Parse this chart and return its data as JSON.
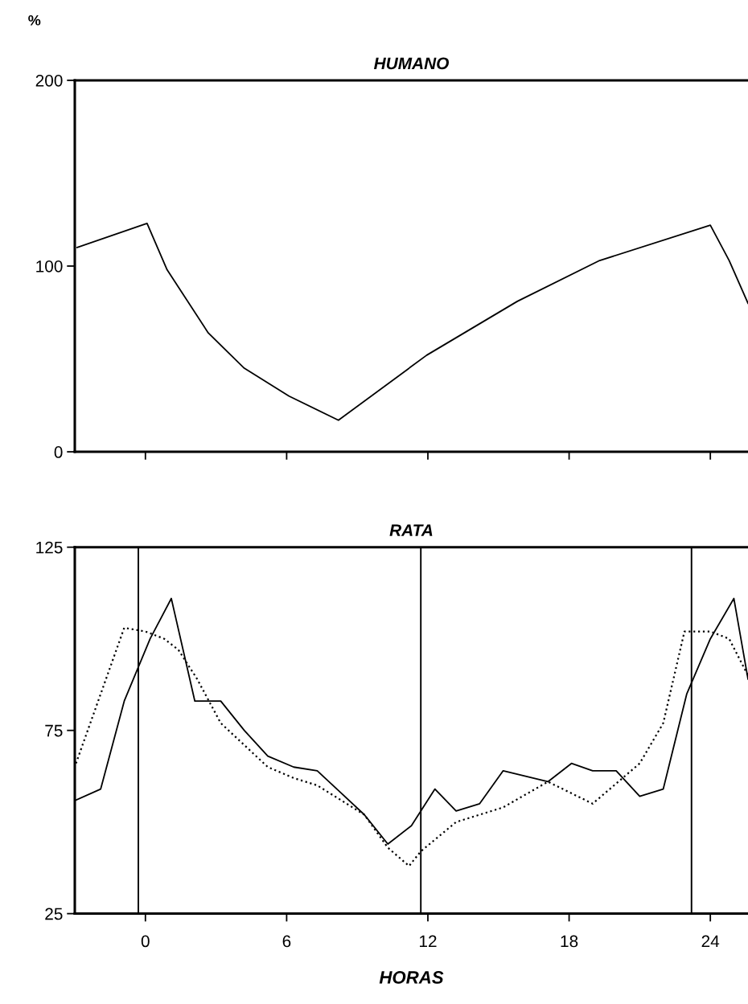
{
  "chart_data": [
    {
      "type": "line",
      "title": "HUMANO",
      "ylabel": "%",
      "xlim": [
        -3,
        25.6
      ],
      "ylim": [
        0,
        200
      ],
      "yticks": [
        0,
        100,
        200
      ],
      "xticks": [
        {
          "value": 0,
          "label": null
        },
        {
          "value": 6,
          "label": null
        },
        {
          "value": 12,
          "label": null
        },
        {
          "value": 18,
          "label": null
        },
        {
          "value": 24,
          "label": null
        }
      ],
      "tick_labels": "y",
      "grid": false,
      "legend": false,
      "series": [
        {
          "color": "#000000",
          "line_style": "solid",
          "x": [
            -2.9,
            0.07,
            0.92,
            2.67,
            4.2,
            6.1,
            8.2,
            11.95,
            15.8,
            19.3,
            24.0,
            24.8,
            25.6
          ],
          "values": [
            110,
            123,
            98,
            64,
            45,
            30,
            17,
            52,
            81,
            103,
            122,
            103,
            80
          ]
        }
      ]
    },
    {
      "type": "line",
      "title": "RATA",
      "xlabel": "HORAS",
      "xlim": [
        -3,
        25.6
      ],
      "ylim": [
        25,
        125
      ],
      "yticks": [
        25,
        75,
        125
      ],
      "xticks": [
        0,
        6,
        12,
        18,
        24
      ],
      "grid": false,
      "legend": false,
      "ref_lines": [
        {
          "axis": "x",
          "value": -0.3,
          "color": "#000000"
        },
        {
          "axis": "x",
          "value": 11.7,
          "color": "#000000"
        },
        {
          "axis": "x",
          "value": 23.2,
          "color": "#000000"
        }
      ],
      "series": [
        {
          "color": "#000000",
          "line_style": "solid",
          "x": [
            -2.95,
            -1.9,
            -0.9,
            0.2,
            1.1,
            2.1,
            3.2,
            4.2,
            5.2,
            6.3,
            7.3,
            8.3,
            9.3,
            10.3,
            11.3,
            12.3,
            13.2,
            14.2,
            15.2,
            17.1,
            18.1,
            19.0,
            20.0,
            21.0,
            22.0,
            23.0,
            24.0,
            25.0,
            25.6
          ],
          "values": [
            56,
            59,
            83,
            100,
            111,
            83,
            83,
            75,
            68,
            65,
            64,
            58,
            52,
            44,
            49,
            59,
            53,
            55,
            64,
            61,
            66,
            64,
            64,
            57,
            59,
            85,
            100,
            111,
            89
          ]
        },
        {
          "color": "#000000",
          "line_style": "dotted",
          "x": [
            -2.95,
            -0.9,
            0.0,
            0.8,
            1.4,
            2.2,
            3.2,
            4.2,
            5.2,
            6.3,
            7.3,
            8.3,
            9.3,
            10.3,
            11.2,
            11.7,
            13.2,
            14.2,
            15.2,
            17.1,
            19.0,
            21.0,
            22.0,
            22.9,
            24.0,
            24.8,
            25.6
          ],
          "values": [
            66,
            103,
            102,
            100,
            97,
            89,
            77,
            71,
            65,
            62,
            60,
            56,
            52,
            43,
            38,
            42,
            50,
            52,
            54,
            61,
            55,
            66,
            77,
            102,
            102,
            100,
            90
          ]
        }
      ]
    }
  ]
}
